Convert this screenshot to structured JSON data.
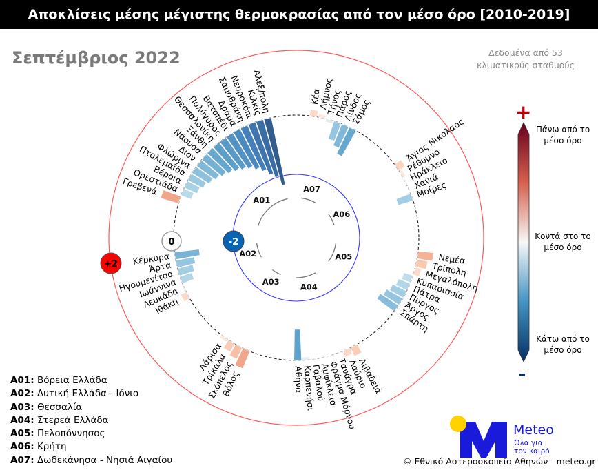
{
  "header": {
    "title": "Αποκλίσεις μέσης μέγιστης θερμοκρασίας από τον μέσο όρο [2010-2019]",
    "subtitle": "Σεπτέμβριος 2022",
    "note_line1": "Δεδομένα από 53",
    "note_line2": "κλιματικούς σταθμούς"
  },
  "chart_data": {
    "type": "radial-bar",
    "title": "Αποκλίσεις μέσης μέγιστης θερμοκρασίας από τον μέσο όρο [2010-2019]",
    "unit": "°C",
    "reference_rings": [
      {
        "label": "+2",
        "value": 2,
        "color": "#ff0000"
      },
      {
        "label": "0",
        "value": 0,
        "color": "#ffffff"
      },
      {
        "label": "-2",
        "value": -2,
        "color": "#0a64b4"
      }
    ],
    "groups": [
      {
        "code": "A01",
        "name": "Βόρεια Ελλάδα",
        "stations": [
          {
            "name": "Γρεβενά",
            "value": 0.6
          },
          {
            "name": "Ορεστιάδα",
            "value": -0.35
          },
          {
            "name": "Βέροια",
            "value": -0.45
          },
          {
            "name": "Πτολεμαΐδα",
            "value": -0.55
          },
          {
            "name": "Φλώρινα",
            "value": -0.65
          },
          {
            "name": "Δίον",
            "value": -0.75
          },
          {
            "name": "Νάουσα",
            "value": -0.85
          },
          {
            "name": "Ξάνθη",
            "value": -0.95
          },
          {
            "name": "Θεσσαλονίκη",
            "value": -1.05
          },
          {
            "name": "Πολύγυρος",
            "value": -1.15
          },
          {
            "name": "Βατοπέδι",
            "value": -1.25
          },
          {
            "name": "Δράμα",
            "value": -1.4
          },
          {
            "name": "Σαμοθράκη",
            "value": -1.55
          },
          {
            "name": "Νευροκόπι",
            "value": -1.75
          },
          {
            "name": "Κιλκίς",
            "value": -1.9
          },
          {
            "name": "Αλεξ/πολη",
            "value": -2.2
          }
        ]
      },
      {
        "code": "A07",
        "name": "Δωδεκάνησα - Νησιά Αιγαίου",
        "stations": [
          {
            "name": "Κέα",
            "value": 0.2
          },
          {
            "name": "Λήμνος",
            "value": 0.1
          },
          {
            "name": "Τήνος",
            "value": -0.1
          },
          {
            "name": "Πάρος",
            "value": -0.6
          },
          {
            "name": "Λίνδος",
            "value": -0.75
          },
          {
            "name": "Σάμος",
            "value": -0.95
          }
        ]
      },
      {
        "code": "A06",
        "name": "Κρήτη",
        "stations": [
          {
            "name": "Άγιος Νικόλαος",
            "value": 0.25
          },
          {
            "name": "Ρέθυμνο",
            "value": 0.1
          },
          {
            "name": "Ηράκλειο",
            "value": 0.03
          },
          {
            "name": "Χανιά",
            "value": 0.03
          },
          {
            "name": "Μοίρες",
            "value": -0.5
          }
        ]
      },
      {
        "code": "A05",
        "name": "Πελοπόννησος",
        "stations": [
          {
            "name": "Νεμέα",
            "value": 0.5
          },
          {
            "name": "Τρίπολη",
            "value": 0.35
          },
          {
            "name": "Μεγαλόπολη",
            "value": 0.2
          },
          {
            "name": "Κυπαρισσία",
            "value": -0.3
          },
          {
            "name": "Πάτρα",
            "value": -0.4
          },
          {
            "name": "Πύργος",
            "value": -0.5
          },
          {
            "name": "Άργος",
            "value": -0.6
          },
          {
            "name": "Σπάρτη",
            "value": -0.7
          }
        ]
      },
      {
        "code": "A04",
        "name": "Στερεά Ελλάδα",
        "stations": [
          {
            "name": "Λιβαδειά",
            "value": 0.3
          },
          {
            "name": "Λαύριο",
            "value": 0.2
          },
          {
            "name": "Τανάγρα",
            "value": 0.03
          },
          {
            "name": "Φράγμα Μόρνου",
            "value": 0.03
          },
          {
            "name": "Αμφίκλεια",
            "value": 0.02
          },
          {
            "name": "Γαβαλού",
            "value": -0.03
          },
          {
            "name": "Καρπενήσι",
            "value": -0.1
          },
          {
            "name": "Αθήνα",
            "value": -1.0
          }
        ]
      },
      {
        "code": "A03",
        "name": "Θεσσαλία",
        "stations": [
          {
            "name": "Βόλος",
            "value": 0.6
          },
          {
            "name": "Σκόπελος",
            "value": 0.4
          },
          {
            "name": "Τρίκαλα",
            "value": 0.3
          },
          {
            "name": "Λάρισα",
            "value": 0.1
          }
        ]
      },
      {
        "code": "A02",
        "name": "Δυτική Ελλάδα - Ιόνιο",
        "stations": [
          {
            "name": "Ιθάκη",
            "value": 0.2
          },
          {
            "name": "Λευκάδα",
            "value": 0.05
          },
          {
            "name": "Ιωάννινα",
            "value": -0.4
          },
          {
            "name": "Ηγουμενίτσα",
            "value": -0.5
          },
          {
            "name": "Άρτα",
            "value": -0.6
          },
          {
            "name": "Κέρκυρα",
            "value": -0.8
          }
        ]
      }
    ]
  },
  "legend": [
    {
      "code": "A01:",
      "name": "Βόρεια Ελλάδα"
    },
    {
      "code": "A02:",
      "name": "Δυτική Ελλάδα - Ιόνιο"
    },
    {
      "code": "A03:",
      "name": "Θεσσαλία"
    },
    {
      "code": "A04:",
      "name": "Στερεά Ελλάδα"
    },
    {
      "code": "A05:",
      "name": "Πελοπόννησος"
    },
    {
      "code": "A06:",
      "name": "Κρήτη"
    },
    {
      "code": "A07:",
      "name": "Δωδεκάνησα - Νησιά Αιγαίου"
    }
  ],
  "colorbar": {
    "plus": "+",
    "minus": "-",
    "top_label": "Πάνω από το μέσο όρο",
    "mid_label": "Κοντά στο το μέσο όρο",
    "bottom_label": "Κάτω από το μέσο όρο",
    "colors": [
      "#67001f",
      "#d6604d",
      "#f7f7f7",
      "#4393c3",
      "#053061"
    ]
  },
  "logo": {
    "brand": "Meteo",
    "tagline1": "Όλα για",
    "tagline2": "τον καιρό",
    "brand_color": "#1a1adb",
    "sun_color": "#ffd200"
  },
  "footer": {
    "copyright": "© Εθνικό Αστεροσκοπείο Αθηνών - meteo.gr"
  }
}
